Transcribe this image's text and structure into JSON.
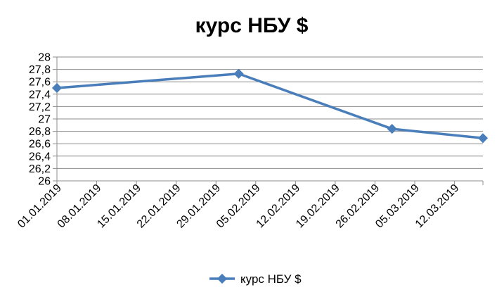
{
  "chart_data": {
    "type": "line",
    "title": "курс НБУ $",
    "xlabel": "",
    "ylabel": "",
    "x_ticks": [
      "01.01.2019",
      "08.01.2019",
      "15.01.2019",
      "22.01.2019",
      "29.01.2019",
      "05.02.2019",
      "12.02.2019",
      "19.02.2019",
      "26.02.2019",
      "05.03.2019",
      "12.03.2019"
    ],
    "y_ticks": [
      "26",
      "26,2",
      "26,4",
      "26,6",
      "26,8",
      "27",
      "27,2",
      "27,4",
      "27,6",
      "27,8",
      "28"
    ],
    "ylim": [
      26,
      28
    ],
    "xlim": [
      "01.01.2019",
      "17.03.2019"
    ],
    "grid": "horizontal",
    "legend_position": "bottom",
    "series": [
      {
        "name": "курс НБУ $",
        "color": "#4a7ebb",
        "marker": "diamond",
        "points": [
          {
            "x": "01.01.2019",
            "y": 27.5
          },
          {
            "x": "02.02.2019",
            "y": 27.73
          },
          {
            "x": "01.03.2019",
            "y": 26.84
          },
          {
            "x": "17.03.2019",
            "y": 26.69
          }
        ]
      }
    ]
  }
}
